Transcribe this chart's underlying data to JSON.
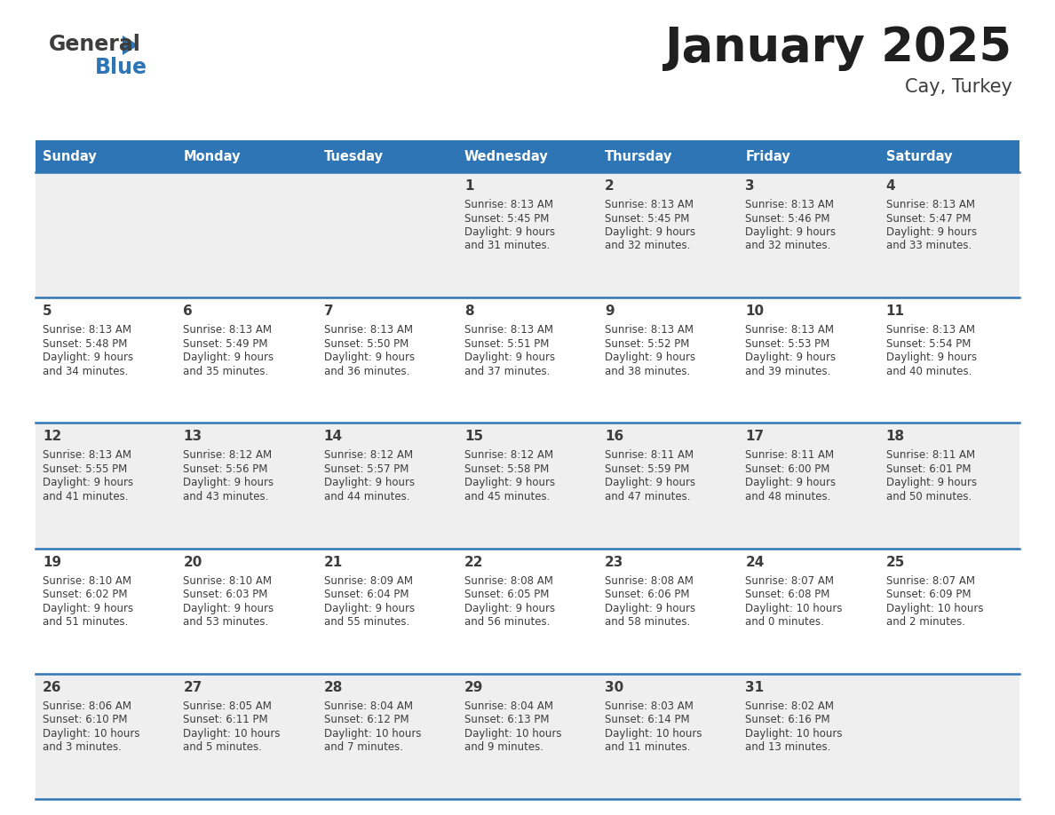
{
  "title": "January 2025",
  "subtitle": "Cay, Turkey",
  "header_bg": "#2E75B6",
  "header_text_color": "#FFFFFF",
  "cell_bg_odd": "#EFEFEF",
  "cell_bg_even": "#FFFFFF",
  "border_color": "#2E75B6",
  "text_color": "#3D3D3D",
  "days_of_week": [
    "Sunday",
    "Monday",
    "Tuesday",
    "Wednesday",
    "Thursday",
    "Friday",
    "Saturday"
  ],
  "weeks": [
    [
      {
        "day": "",
        "sunrise": "",
        "sunset": "",
        "daylight": ""
      },
      {
        "day": "",
        "sunrise": "",
        "sunset": "",
        "daylight": ""
      },
      {
        "day": "",
        "sunrise": "",
        "sunset": "",
        "daylight": ""
      },
      {
        "day": "1",
        "sunrise": "Sunrise: 8:13 AM",
        "sunset": "Sunset: 5:45 PM",
        "daylight": "Daylight: 9 hours\nand 31 minutes."
      },
      {
        "day": "2",
        "sunrise": "Sunrise: 8:13 AM",
        "sunset": "Sunset: 5:45 PM",
        "daylight": "Daylight: 9 hours\nand 32 minutes."
      },
      {
        "day": "3",
        "sunrise": "Sunrise: 8:13 AM",
        "sunset": "Sunset: 5:46 PM",
        "daylight": "Daylight: 9 hours\nand 32 minutes."
      },
      {
        "day": "4",
        "sunrise": "Sunrise: 8:13 AM",
        "sunset": "Sunset: 5:47 PM",
        "daylight": "Daylight: 9 hours\nand 33 minutes."
      }
    ],
    [
      {
        "day": "5",
        "sunrise": "Sunrise: 8:13 AM",
        "sunset": "Sunset: 5:48 PM",
        "daylight": "Daylight: 9 hours\nand 34 minutes."
      },
      {
        "day": "6",
        "sunrise": "Sunrise: 8:13 AM",
        "sunset": "Sunset: 5:49 PM",
        "daylight": "Daylight: 9 hours\nand 35 minutes."
      },
      {
        "day": "7",
        "sunrise": "Sunrise: 8:13 AM",
        "sunset": "Sunset: 5:50 PM",
        "daylight": "Daylight: 9 hours\nand 36 minutes."
      },
      {
        "day": "8",
        "sunrise": "Sunrise: 8:13 AM",
        "sunset": "Sunset: 5:51 PM",
        "daylight": "Daylight: 9 hours\nand 37 minutes."
      },
      {
        "day": "9",
        "sunrise": "Sunrise: 8:13 AM",
        "sunset": "Sunset: 5:52 PM",
        "daylight": "Daylight: 9 hours\nand 38 minutes."
      },
      {
        "day": "10",
        "sunrise": "Sunrise: 8:13 AM",
        "sunset": "Sunset: 5:53 PM",
        "daylight": "Daylight: 9 hours\nand 39 minutes."
      },
      {
        "day": "11",
        "sunrise": "Sunrise: 8:13 AM",
        "sunset": "Sunset: 5:54 PM",
        "daylight": "Daylight: 9 hours\nand 40 minutes."
      }
    ],
    [
      {
        "day": "12",
        "sunrise": "Sunrise: 8:13 AM",
        "sunset": "Sunset: 5:55 PM",
        "daylight": "Daylight: 9 hours\nand 41 minutes."
      },
      {
        "day": "13",
        "sunrise": "Sunrise: 8:12 AM",
        "sunset": "Sunset: 5:56 PM",
        "daylight": "Daylight: 9 hours\nand 43 minutes."
      },
      {
        "day": "14",
        "sunrise": "Sunrise: 8:12 AM",
        "sunset": "Sunset: 5:57 PM",
        "daylight": "Daylight: 9 hours\nand 44 minutes."
      },
      {
        "day": "15",
        "sunrise": "Sunrise: 8:12 AM",
        "sunset": "Sunset: 5:58 PM",
        "daylight": "Daylight: 9 hours\nand 45 minutes."
      },
      {
        "day": "16",
        "sunrise": "Sunrise: 8:11 AM",
        "sunset": "Sunset: 5:59 PM",
        "daylight": "Daylight: 9 hours\nand 47 minutes."
      },
      {
        "day": "17",
        "sunrise": "Sunrise: 8:11 AM",
        "sunset": "Sunset: 6:00 PM",
        "daylight": "Daylight: 9 hours\nand 48 minutes."
      },
      {
        "day": "18",
        "sunrise": "Sunrise: 8:11 AM",
        "sunset": "Sunset: 6:01 PM",
        "daylight": "Daylight: 9 hours\nand 50 minutes."
      }
    ],
    [
      {
        "day": "19",
        "sunrise": "Sunrise: 8:10 AM",
        "sunset": "Sunset: 6:02 PM",
        "daylight": "Daylight: 9 hours\nand 51 minutes."
      },
      {
        "day": "20",
        "sunrise": "Sunrise: 8:10 AM",
        "sunset": "Sunset: 6:03 PM",
        "daylight": "Daylight: 9 hours\nand 53 minutes."
      },
      {
        "day": "21",
        "sunrise": "Sunrise: 8:09 AM",
        "sunset": "Sunset: 6:04 PM",
        "daylight": "Daylight: 9 hours\nand 55 minutes."
      },
      {
        "day": "22",
        "sunrise": "Sunrise: 8:08 AM",
        "sunset": "Sunset: 6:05 PM",
        "daylight": "Daylight: 9 hours\nand 56 minutes."
      },
      {
        "day": "23",
        "sunrise": "Sunrise: 8:08 AM",
        "sunset": "Sunset: 6:06 PM",
        "daylight": "Daylight: 9 hours\nand 58 minutes."
      },
      {
        "day": "24",
        "sunrise": "Sunrise: 8:07 AM",
        "sunset": "Sunset: 6:08 PM",
        "daylight": "Daylight: 10 hours\nand 0 minutes."
      },
      {
        "day": "25",
        "sunrise": "Sunrise: 8:07 AM",
        "sunset": "Sunset: 6:09 PM",
        "daylight": "Daylight: 10 hours\nand 2 minutes."
      }
    ],
    [
      {
        "day": "26",
        "sunrise": "Sunrise: 8:06 AM",
        "sunset": "Sunset: 6:10 PM",
        "daylight": "Daylight: 10 hours\nand 3 minutes."
      },
      {
        "day": "27",
        "sunrise": "Sunrise: 8:05 AM",
        "sunset": "Sunset: 6:11 PM",
        "daylight": "Daylight: 10 hours\nand 5 minutes."
      },
      {
        "day": "28",
        "sunrise": "Sunrise: 8:04 AM",
        "sunset": "Sunset: 6:12 PM",
        "daylight": "Daylight: 10 hours\nand 7 minutes."
      },
      {
        "day": "29",
        "sunrise": "Sunrise: 8:04 AM",
        "sunset": "Sunset: 6:13 PM",
        "daylight": "Daylight: 10 hours\nand 9 minutes."
      },
      {
        "day": "30",
        "sunrise": "Sunrise: 8:03 AM",
        "sunset": "Sunset: 6:14 PM",
        "daylight": "Daylight: 10 hours\nand 11 minutes."
      },
      {
        "day": "31",
        "sunrise": "Sunrise: 8:02 AM",
        "sunset": "Sunset: 6:16 PM",
        "daylight": "Daylight: 10 hours\nand 13 minutes."
      },
      {
        "day": "",
        "sunrise": "",
        "sunset": "",
        "daylight": ""
      }
    ]
  ]
}
